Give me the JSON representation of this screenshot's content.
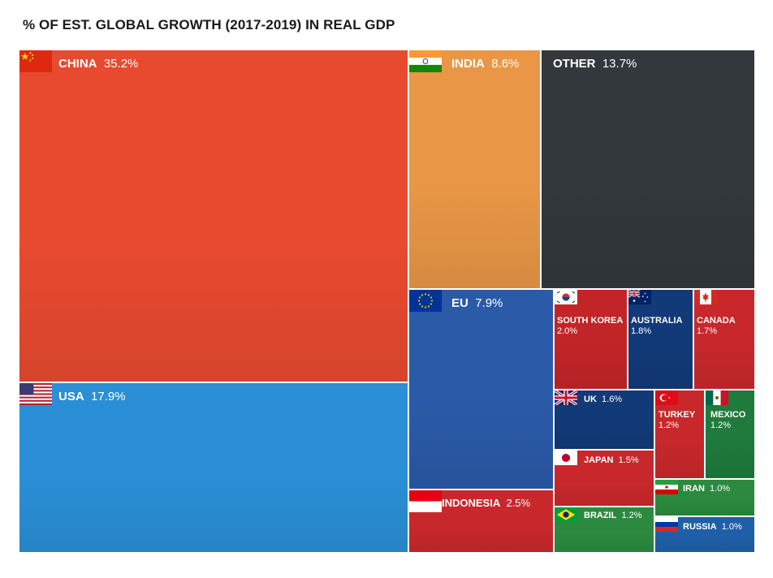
{
  "chart_data": {
    "type": "treemap",
    "title": "% OF EST. GLOBAL GROWTH (2017-2019) IN REAL GDP",
    "unit": "%",
    "items": [
      {
        "name": "CHINA",
        "value": 35.2,
        "label": "35.2%",
        "color": "#e84a30"
      },
      {
        "name": "USA",
        "value": 17.9,
        "label": "17.9%",
        "color": "#2a8fd6"
      },
      {
        "name": "INDIA",
        "value": 8.6,
        "label": "8.6%",
        "color": "#e99746"
      },
      {
        "name": "OTHER",
        "value": 13.7,
        "label": "13.7%",
        "color": "#33383d"
      },
      {
        "name": "EU",
        "value": 7.9,
        "label": "7.9%",
        "color": "#2a5aa8"
      },
      {
        "name": "INDONESIA",
        "value": 2.5,
        "label": "2.5%",
        "color": "#c8282c"
      },
      {
        "name": "SOUTH KOREA",
        "value": 2.0,
        "label": "2.0%",
        "color": "#c22528"
      },
      {
        "name": "AUSTRALIA",
        "value": 1.8,
        "label": "1.8%",
        "color": "#123a78"
      },
      {
        "name": "CANADA",
        "value": 1.7,
        "label": "1.7%",
        "color": "#c8282c"
      },
      {
        "name": "UK",
        "value": 1.6,
        "label": "1.6%",
        "color": "#123a78"
      },
      {
        "name": "JAPAN",
        "value": 1.5,
        "label": "1.5%",
        "color": "#c8282c"
      },
      {
        "name": "TURKEY",
        "value": 1.2,
        "label": "1.2%",
        "color": "#c8282c"
      },
      {
        "name": "MEXICO",
        "value": 1.2,
        "label": "1.2%",
        "color": "#1f7a3c"
      },
      {
        "name": "BRAZIL",
        "value": 1.2,
        "label": "1.2%",
        "color": "#2b8a3f"
      },
      {
        "name": "IRAN",
        "value": 1.0,
        "label": "1.0%",
        "color": "#2b8a3f"
      },
      {
        "name": "RUSSIA",
        "value": 1.0,
        "label": "1.0%",
        "color": "#1f5fa8"
      }
    ]
  }
}
